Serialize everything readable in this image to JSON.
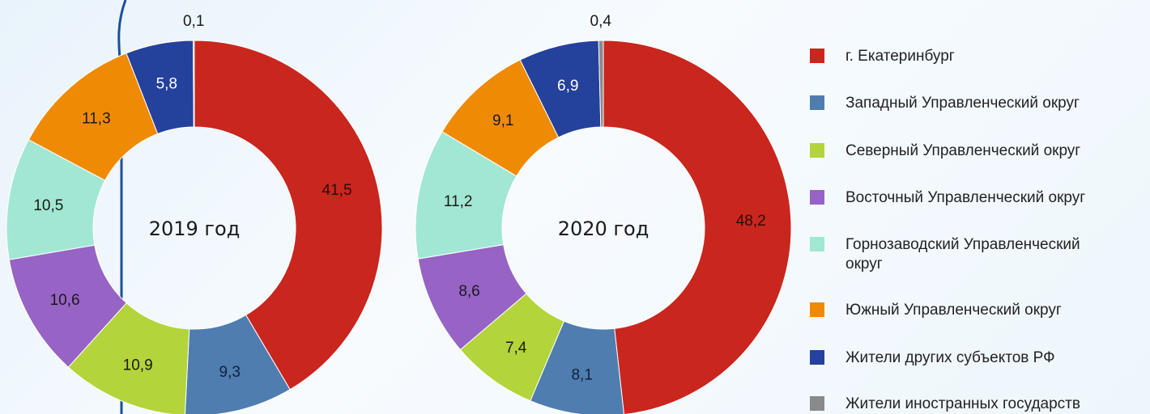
{
  "colors": {
    "ekb": "#c9261e",
    "zapadny": "#4f7db0",
    "severny": "#b3d43a",
    "vostochny": "#9763c4",
    "gornozavodsky": "#a1e7d3",
    "yuzhny": "#ef8a04",
    "rf_subjects": "#24419b",
    "foreign": "#8a8a8a"
  },
  "legend": [
    {
      "label": "г. Екатеринбург",
      "color": "#c9261e"
    },
    {
      "label": "Западный Управленческий округ",
      "color": "#4f7db0"
    },
    {
      "label": "Северный Управленческий округ",
      "color": "#b3d43a"
    },
    {
      "label": "Восточный Управленческий округ",
      "color": "#9763c4"
    },
    {
      "label": "Горнозаводский Управленческий округ",
      "color": "#a1e7d3"
    },
    {
      "label": "Южный Управленческий округ",
      "color": "#ef8a04"
    },
    {
      "label": "Жители других субъектов РФ",
      "color": "#24419b"
    },
    {
      "label": "Жители иностранных государств",
      "color": "#8a8a8a"
    }
  ],
  "chart_data": [
    {
      "type": "pie",
      "subtype": "donut",
      "center_label": "2019 год",
      "categories": [
        "г. Екатеринбург",
        "Западный Управленческий округ",
        "Северный Управленческий округ",
        "Восточный Управленческий округ",
        "Горнозаводский Управленческий округ",
        "Южный Управленческий округ",
        "Жители других субъектов РФ",
        "Жители иностранных государств"
      ],
      "values": [
        41.5,
        9.3,
        10.9,
        10.6,
        10.5,
        11.3,
        5.8,
        0.1
      ],
      "value_labels": [
        "41,5",
        "9,3",
        "10,9",
        "10,6",
        "10,5",
        "11,3",
        "5,8",
        "0,1"
      ]
    },
    {
      "type": "pie",
      "subtype": "donut",
      "center_label": "2020 год",
      "categories": [
        "г. Екатеринбург",
        "Западный Управленческий округ",
        "Северный Управленческий округ",
        "Восточный Управленческий округ",
        "Горнозаводский Управленческий округ",
        "Южный Управленческий округ",
        "Жители других субъектов РФ",
        "Жители иностранных государств"
      ],
      "values": [
        48.2,
        8.1,
        7.4,
        8.6,
        11.2,
        9.1,
        6.9,
        0.4
      ],
      "value_labels": [
        "48,2",
        "8,1",
        "7,4",
        "8,6",
        "11,2",
        "9,1",
        "6,9",
        "0,4"
      ]
    }
  ]
}
